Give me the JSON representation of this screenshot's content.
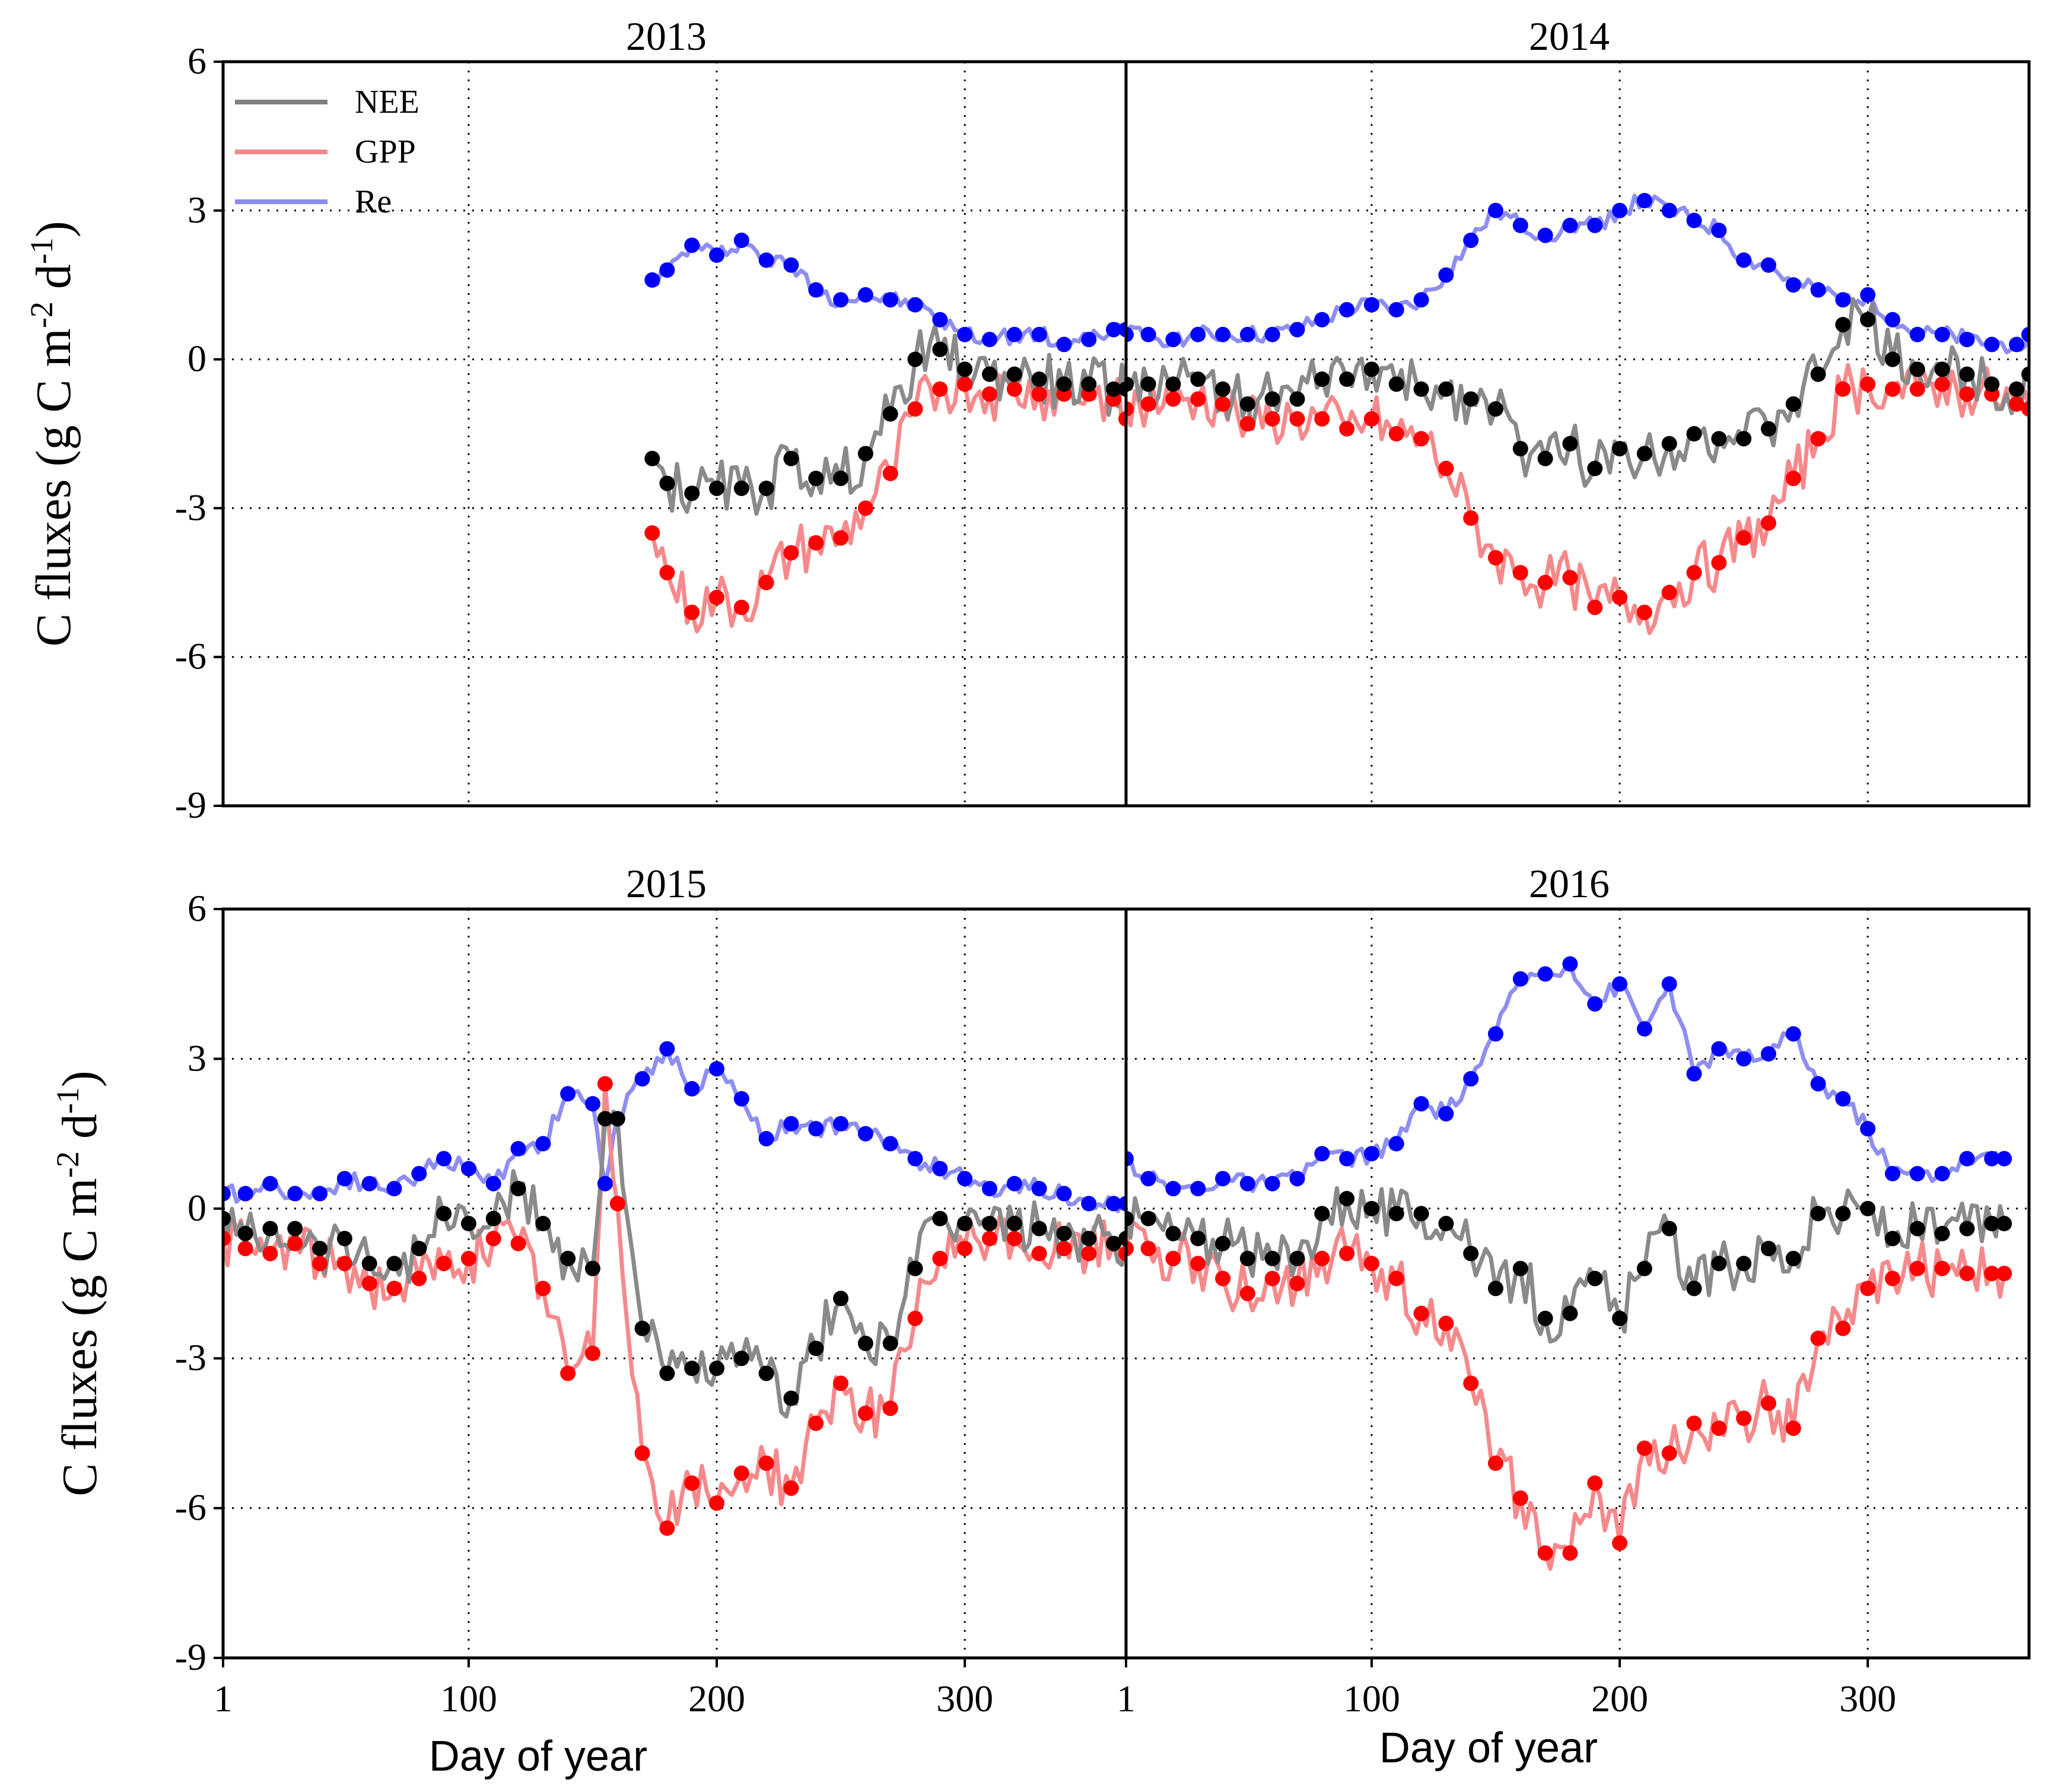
{
  "chart_data": {
    "type": "line",
    "ylabel": "C fluxes (g C m-2 d-1)",
    "xlabel": "Day of  year",
    "ylim": [
      -9,
      6
    ],
    "yticks": [
      -9,
      -6,
      -3,
      0,
      3,
      6
    ],
    "xticks": [
      1,
      100,
      200,
      300
    ],
    "grid": "dotted",
    "legend": {
      "placement": "top-left",
      "entries": [
        {
          "name": "NEE",
          "color": "#808080"
        },
        {
          "name": "GPP",
          "color": "#f4888a"
        },
        {
          "name": "Re",
          "color": "#8c8cf0"
        }
      ]
    },
    "series_style": {
      "NEE": {
        "line": "#8a8a8a",
        "dot": "#000000"
      },
      "GPP": {
        "line": "#f6898b",
        "dot": "#ff0000"
      },
      "Re": {
        "line": "#8e8ef2",
        "dot": "#0000ff"
      }
    },
    "panels": [
      {
        "year": "2013",
        "x": [
          174,
          180,
          190,
          200,
          210,
          220,
          230,
          240,
          250,
          260,
          270,
          280,
          290,
          300,
          310,
          320,
          330,
          340,
          350,
          360,
          365
        ],
        "series": [
          {
            "name": "NEE",
            "values": [
              -2.0,
              -2.5,
              -2.7,
              -2.6,
              -2.6,
              -2.6,
              -2.0,
              -2.4,
              -2.4,
              -1.9,
              -1.1,
              0.0,
              0.2,
              -0.2,
              -0.3,
              -0.3,
              -0.4,
              -0.5,
              -0.5,
              -0.6,
              -0.6
            ]
          },
          {
            "name": "GPP",
            "values": [
              -3.5,
              -4.3,
              -5.1,
              -4.8,
              -5.0,
              -4.5,
              -3.9,
              -3.7,
              -3.6,
              -3.0,
              -2.3,
              -1.0,
              -0.6,
              -0.5,
              -0.7,
              -0.6,
              -0.7,
              -0.7,
              -0.7,
              -0.8,
              -1.2
            ]
          },
          {
            "name": "Re",
            "values": [
              1.6,
              1.8,
              2.3,
              2.1,
              2.4,
              2.0,
              1.9,
              1.4,
              1.2,
              1.3,
              1.2,
              1.1,
              0.8,
              0.5,
              0.4,
              0.5,
              0.5,
              0.3,
              0.4,
              0.6,
              0.6
            ]
          }
        ]
      },
      {
        "year": "2014",
        "x": [
          1,
          10,
          20,
          30,
          40,
          50,
          60,
          70,
          80,
          90,
          100,
          110,
          120,
          130,
          140,
          150,
          160,
          170,
          180,
          190,
          200,
          210,
          220,
          230,
          240,
          250,
          260,
          270,
          280,
          290,
          300,
          310,
          320,
          330,
          340,
          350,
          360,
          365
        ],
        "series": [
          {
            "name": "NEE",
            "values": [
              -0.5,
              -0.5,
              -0.5,
              -0.4,
              -0.6,
              -0.9,
              -0.8,
              -0.8,
              -0.4,
              -0.4,
              -0.2,
              -0.5,
              -0.6,
              -0.6,
              -0.8,
              -1.0,
              -1.8,
              -2.0,
              -1.7,
              -2.2,
              -1.8,
              -1.9,
              -1.7,
              -1.5,
              -1.6,
              -1.6,
              -1.4,
              -0.9,
              -0.3,
              0.7,
              0.8,
              0.0,
              -0.2,
              -0.2,
              -0.3,
              -0.5,
              -0.6,
              -0.3
            ]
          },
          {
            "name": "GPP",
            "values": [
              -1.0,
              -0.9,
              -0.8,
              -0.8,
              -0.9,
              -1.3,
              -1.2,
              -1.2,
              -1.2,
              -1.4,
              -1.2,
              -1.5,
              -1.6,
              -2.2,
              -3.2,
              -4.0,
              -4.3,
              -4.5,
              -4.4,
              -5.0,
              -4.8,
              -5.1,
              -4.7,
              -4.3,
              -4.1,
              -3.6,
              -3.3,
              -2.4,
              -1.6,
              -0.6,
              -0.5,
              -0.6,
              -0.6,
              -0.5,
              -0.7,
              -0.7,
              -0.9,
              -1.0
            ]
          },
          {
            "name": "Re",
            "values": [
              0.5,
              0.5,
              0.4,
              0.5,
              0.5,
              0.5,
              0.5,
              0.6,
              0.8,
              1.0,
              1.1,
              1.0,
              1.2,
              1.7,
              2.4,
              3.0,
              2.7,
              2.5,
              2.7,
              2.7,
              3.0,
              3.2,
              3.0,
              2.8,
              2.6,
              2.0,
              1.9,
              1.5,
              1.4,
              1.2,
              1.3,
              0.8,
              0.5,
              0.5,
              0.4,
              0.3,
              0.3,
              0.5
            ]
          }
        ]
      },
      {
        "year": "2015",
        "x": [
          1,
          10,
          20,
          30,
          40,
          50,
          60,
          70,
          80,
          90,
          100,
          110,
          120,
          130,
          140,
          150,
          155,
          160,
          170,
          180,
          190,
          200,
          210,
          220,
          230,
          240,
          250,
          260,
          270,
          280,
          290,
          300,
          310,
          320,
          330,
          340,
          350,
          360,
          365
        ],
        "series": [
          {
            "name": "NEE",
            "values": [
              -0.2,
              -0.5,
              -0.4,
              -0.4,
              -0.8,
              -0.6,
              -1.1,
              -1.1,
              -0.8,
              -0.1,
              -0.3,
              -0.2,
              0.4,
              -0.3,
              -1.0,
              -1.2,
              1.8,
              1.8,
              -2.4,
              -3.3,
              -3.2,
              -3.2,
              -3.0,
              -3.3,
              -3.8,
              -2.8,
              -1.8,
              -2.7,
              -2.7,
              -1.2,
              -0.2,
              -0.3,
              -0.3,
              -0.3,
              -0.4,
              -0.5,
              -0.6,
              -0.7,
              -0.6
            ]
          },
          {
            "name": "GPP",
            "values": [
              -0.6,
              -0.8,
              -0.9,
              -0.7,
              -1.1,
              -1.1,
              -1.5,
              -1.6,
              -1.4,
              -1.1,
              -1.0,
              -0.6,
              -0.7,
              -1.6,
              -3.3,
              -2.9,
              2.5,
              0.1,
              -4.9,
              -6.4,
              -5.5,
              -5.9,
              -5.3,
              -5.1,
              -5.6,
              -4.3,
              -3.5,
              -4.1,
              -4.0,
              -2.2,
              -1.0,
              -0.8,
              -0.6,
              -0.6,
              -0.9,
              -0.8,
              -0.9,
              -0.7,
              -0.9
            ]
          },
          {
            "name": "Re",
            "values": [
              0.3,
              0.3,
              0.5,
              0.3,
              0.3,
              0.6,
              0.5,
              0.4,
              0.7,
              1.0,
              0.8,
              0.5,
              1.2,
              1.3,
              2.3,
              2.1,
              0.5,
              1.8,
              2.6,
              3.2,
              2.4,
              2.8,
              2.2,
              1.4,
              1.7,
              1.6,
              1.7,
              1.5,
              1.3,
              1.0,
              0.8,
              0.6,
              0.4,
              0.5,
              0.4,
              0.3,
              0.1,
              0.1,
              0.1
            ]
          }
        ]
      },
      {
        "year": "2016",
        "x": [
          1,
          10,
          20,
          30,
          40,
          50,
          60,
          70,
          80,
          90,
          100,
          110,
          120,
          130,
          140,
          150,
          160,
          170,
          180,
          190,
          200,
          210,
          220,
          230,
          240,
          250,
          260,
          270,
          280,
          290,
          300,
          310,
          320,
          330,
          340,
          350,
          355
        ],
        "series": [
          {
            "name": "NEE",
            "values": [
              -0.2,
              -0.2,
              -0.5,
              -0.6,
              -0.7,
              -1.0,
              -1.0,
              -1.0,
              -0.1,
              0.2,
              0.0,
              -0.1,
              -0.1,
              -0.3,
              -0.9,
              -1.6,
              -1.2,
              -2.2,
              -2.1,
              -1.4,
              -2.2,
              -1.2,
              -0.4,
              -1.6,
              -1.1,
              -1.1,
              -0.8,
              -1.0,
              -0.1,
              -0.1,
              0.0,
              -0.6,
              -0.4,
              -0.5,
              -0.4,
              -0.3,
              -0.3
            ]
          },
          {
            "name": "GPP",
            "values": [
              -0.8,
              -0.8,
              -1.0,
              -1.1,
              -1.4,
              -1.7,
              -1.4,
              -1.5,
              -1.0,
              -0.9,
              -1.1,
              -1.4,
              -2.1,
              -2.3,
              -3.5,
              -5.1,
              -5.8,
              -6.9,
              -6.9,
              -5.5,
              -6.7,
              -4.8,
              -4.9,
              -4.3,
              -4.4,
              -4.2,
              -3.9,
              -4.4,
              -2.6,
              -2.4,
              -1.6,
              -1.4,
              -1.2,
              -1.2,
              -1.3,
              -1.3,
              -1.3
            ]
          },
          {
            "name": "Re",
            "values": [
              1.0,
              0.6,
              0.4,
              0.4,
              0.6,
              0.5,
              0.5,
              0.6,
              1.1,
              1.0,
              1.1,
              1.3,
              2.1,
              1.9,
              2.6,
              3.5,
              4.6,
              4.7,
              4.9,
              4.1,
              4.5,
              3.6,
              4.5,
              2.7,
              3.2,
              3.0,
              3.1,
              3.5,
              2.5,
              2.2,
              1.6,
              0.7,
              0.7,
              0.7,
              1.0,
              1.0,
              1.0
            ]
          }
        ]
      }
    ]
  }
}
